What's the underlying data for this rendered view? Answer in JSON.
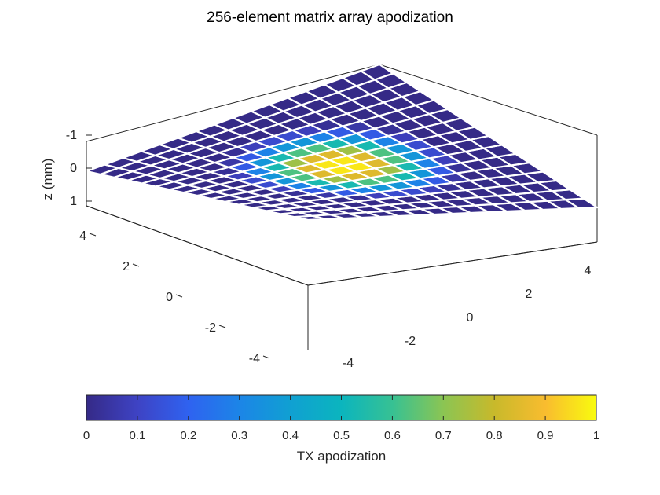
{
  "chart_data": {
    "type": "surface3d",
    "title": "256-element matrix array apodization",
    "zlabel": "z (mm)",
    "grid_size": 16,
    "x_range_mm": [
      -4.8,
      4.8
    ],
    "y_range_mm": [
      -4.8,
      4.8
    ],
    "z_range_mm": [
      -1,
      1
    ],
    "x_ticks": [
      "-4",
      "-2",
      "0",
      "2",
      "4"
    ],
    "y_ticks": [
      "-4",
      "-2",
      "0",
      "2",
      "4"
    ],
    "z_ticks": [
      "-1",
      "0",
      "1"
    ],
    "colormap": "parula",
    "colorbar": {
      "label": "TX apodization",
      "range": [
        0,
        1
      ],
      "ticks": [
        "0",
        "0.1",
        "0.2",
        "0.3",
        "0.4",
        "0.5",
        "0.6",
        "0.7",
        "0.8",
        "0.9",
        "1"
      ],
      "placement": "bottom"
    },
    "apodization_center": 1.0,
    "apodization_falloff": "circular; value drops to 0 near radius 3.2 mm from center",
    "colors": {
      "edge": "#ffffff",
      "box": "#262626"
    }
  }
}
